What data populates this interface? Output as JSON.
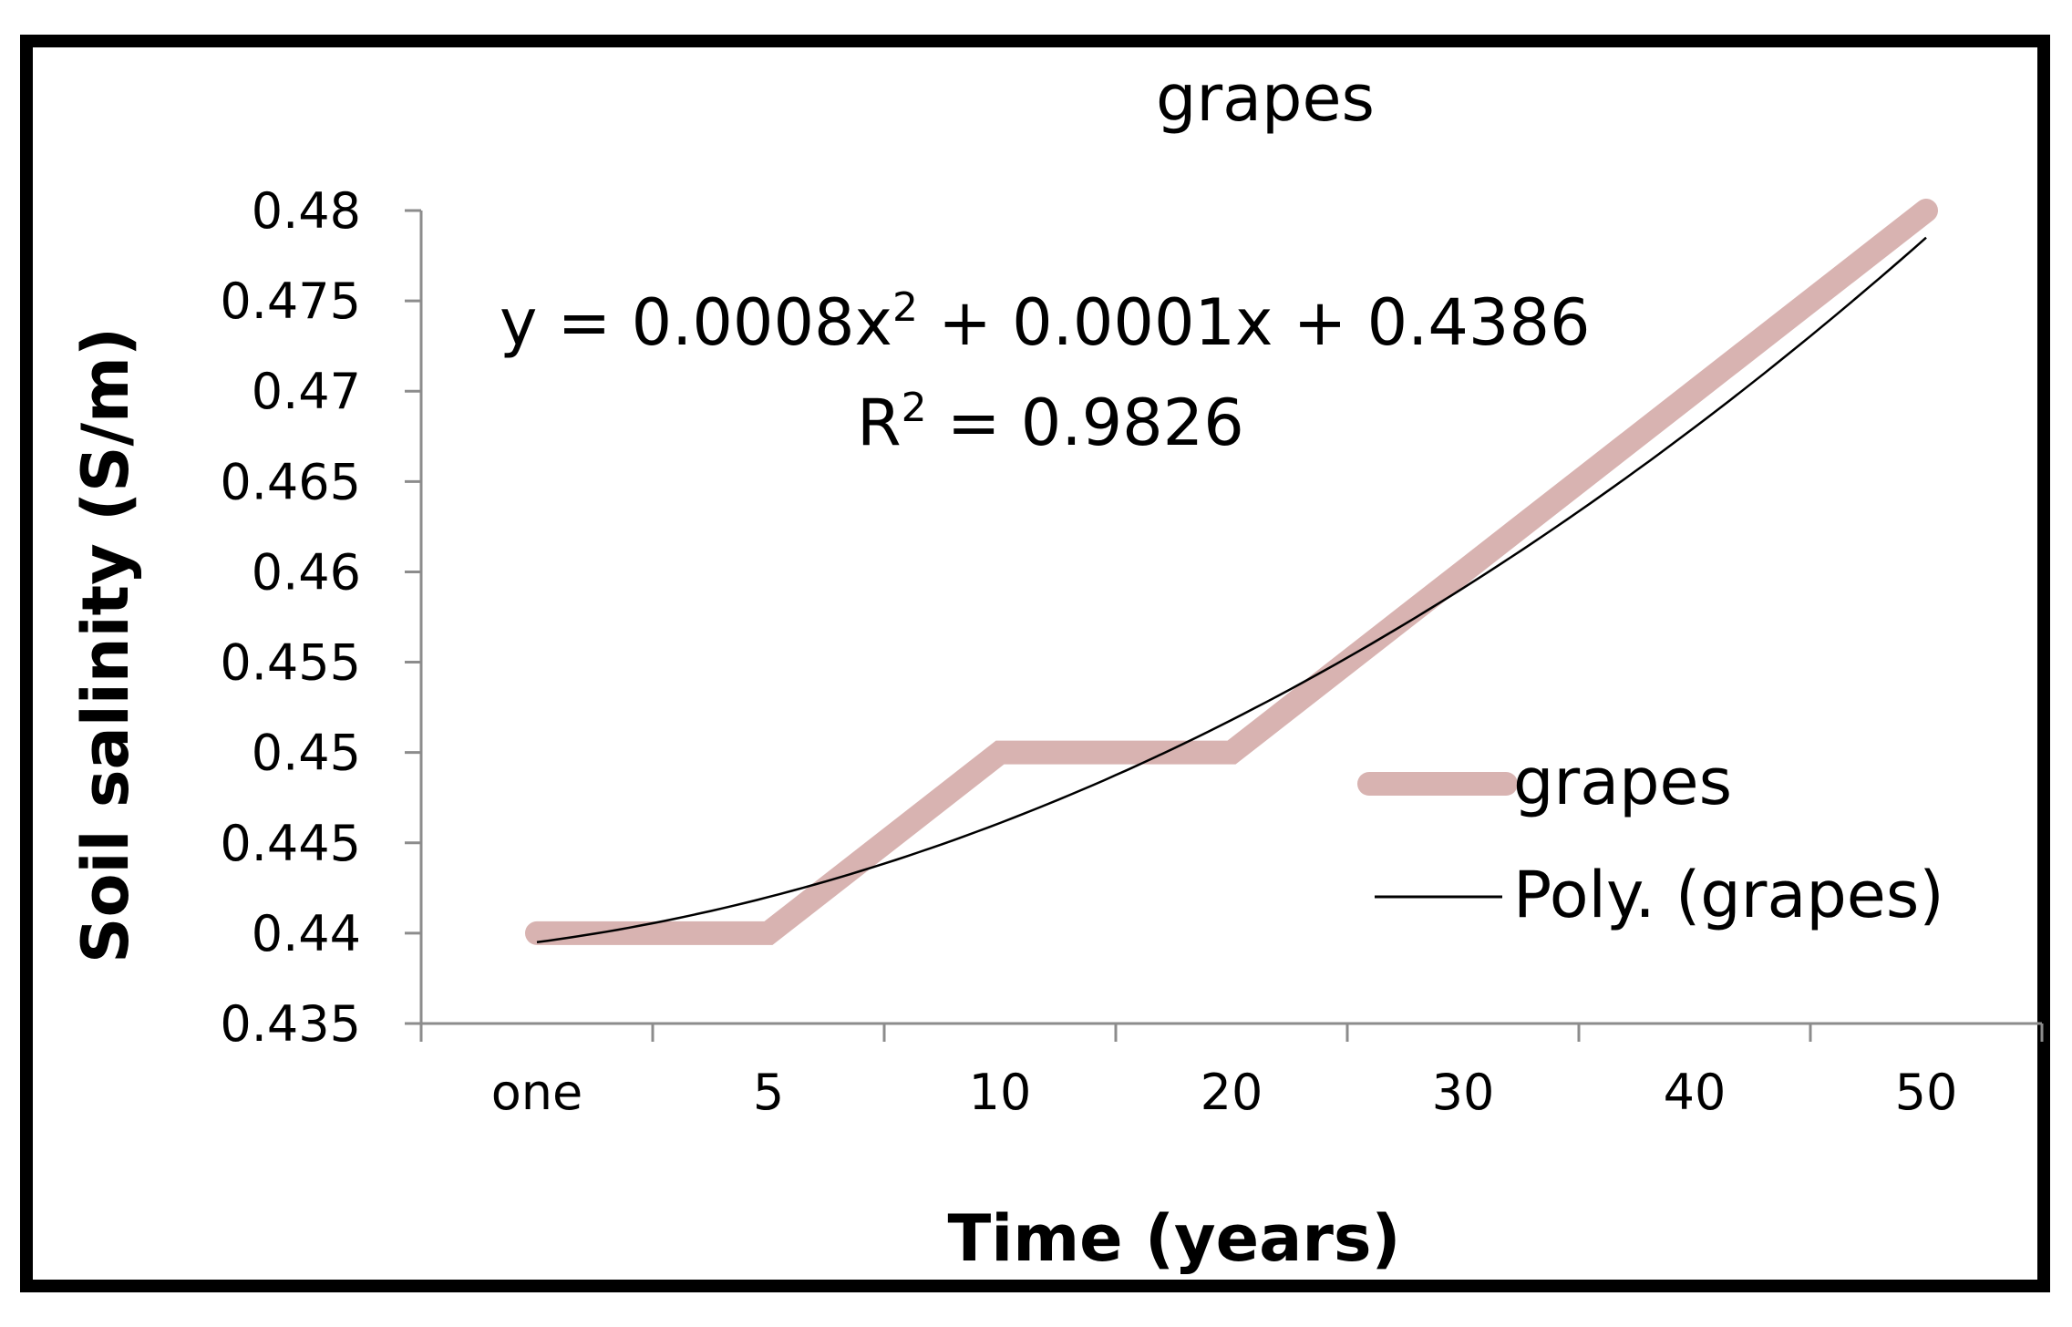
{
  "chart_data": {
    "type": "line",
    "title": "grapes",
    "xlabel": "Time (years)",
    "ylabel": "Soil salinity (S/m)",
    "categories": [
      "one",
      "5",
      "10",
      "20",
      "30",
      "40",
      "50"
    ],
    "ylim": [
      0.435,
      0.48
    ],
    "yticks": [
      "0.48",
      "0.475",
      "0.47",
      "0.465",
      "0.46",
      "0.455",
      "0.45",
      "0.445",
      "0.44",
      "0.435"
    ],
    "series": [
      {
        "name": "grapes",
        "values": [
          0.44,
          0.44,
          0.45,
          0.45,
          0.46,
          0.47,
          0.48
        ],
        "color": "#d8b3b1"
      }
    ],
    "trendline": {
      "name": "Poly. (grapes)",
      "type": "polynomial",
      "order": 2,
      "coefficients": {
        "a": 0.0008,
        "b": 0.0001,
        "c": 0.4386
      },
      "color": "#000000"
    },
    "annotations": {
      "equation_prefix": "y = 0.0008x",
      "equation_suffix": " + 0.0001x + 0.4386",
      "r2_prefix": "R",
      "r2_suffix": " = 0.9826",
      "superscript": "2"
    },
    "legend": {
      "position": "right",
      "entries": [
        "grapes",
        "Poly. (grapes)"
      ]
    },
    "grid": false
  }
}
